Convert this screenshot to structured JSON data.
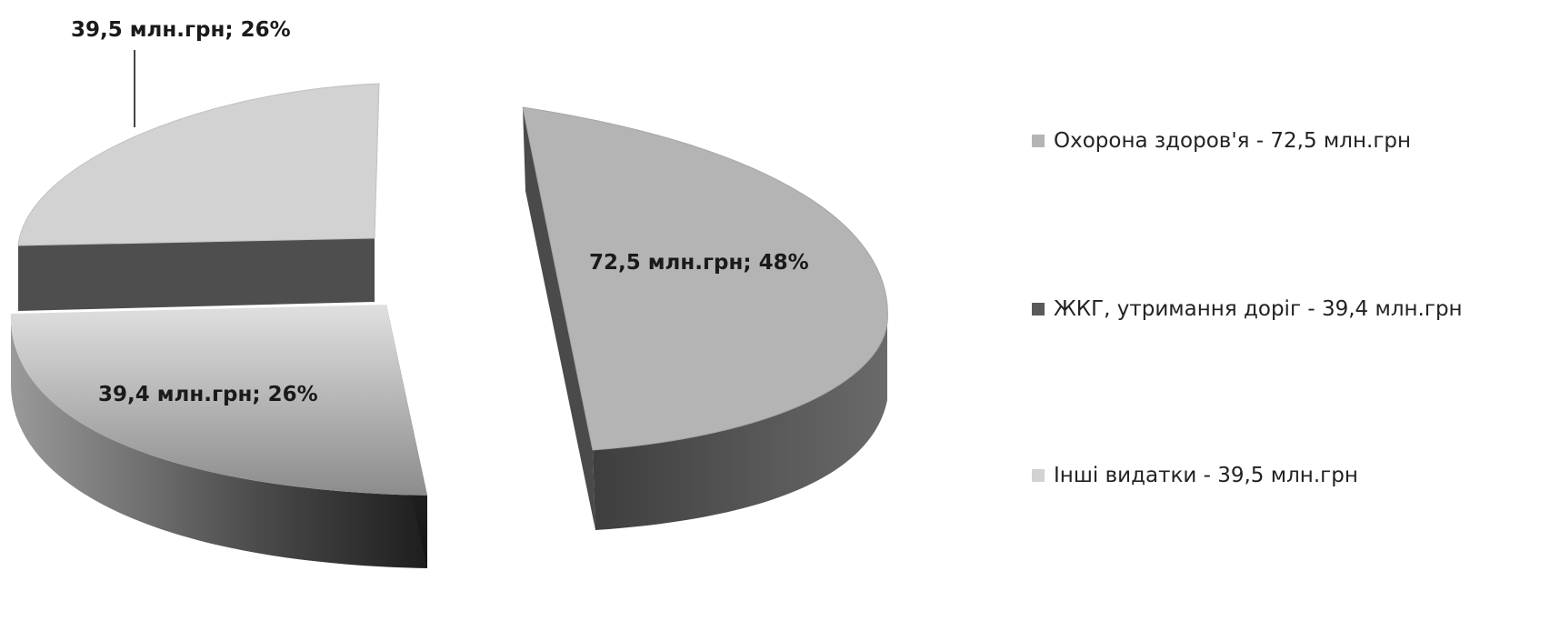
{
  "chart_data": {
    "type": "pie",
    "style": "3d-exploded",
    "title": "",
    "unit": "млн.грн",
    "slices": [
      {
        "legend": "Охорона здоров'я - 72,5 млн.грн",
        "value": 72.5,
        "percent": 48,
        "label": "72,5 млн.грн; 48%",
        "color": "#b4b4b4"
      },
      {
        "legend": "ЖКГ, утримання доріг - 39,4 млн.грн",
        "value": 39.4,
        "percent": 26,
        "label": "39,4 млн.грн; 26%",
        "color": "#5a5a5a"
      },
      {
        "legend": "Інші видатки - 39,5 млн.грн",
        "value": 39.5,
        "percent": 26,
        "label": "39,5 млн.грн; 26%",
        "color": "#d2d2d2"
      }
    ],
    "legend_position": "right"
  }
}
